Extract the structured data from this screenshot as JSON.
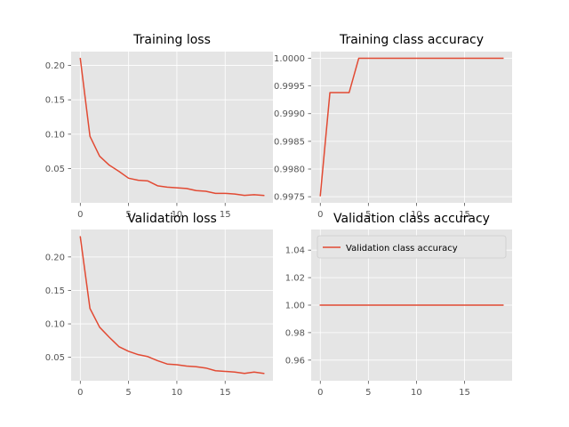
{
  "colors": {
    "background": "#ffffff",
    "plot_background": "#e5e5e5",
    "grid": "#ffffff",
    "line": "#e24a33",
    "tick": "#555555"
  },
  "chart_data": [
    {
      "type": "line",
      "title": "Training loss",
      "xlabel": "",
      "ylabel": "",
      "xlim": [
        -0.95,
        19.95
      ],
      "ylim": [
        0.0002,
        0.2201
      ],
      "xticks": [
        0,
        5,
        10,
        15
      ],
      "xtick_labels": [
        "0",
        "5",
        "10",
        "15"
      ],
      "yticks": [
        0.05,
        0.1,
        0.15,
        0.2
      ],
      "ytick_labels": [
        "0.05",
        "0.10",
        "0.15",
        "0.20"
      ],
      "grid": true,
      "legend": null,
      "series": [
        {
          "x": [
            0,
            1,
            2,
            3,
            4,
            5,
            6,
            7,
            8,
            9,
            10,
            11,
            12,
            13,
            14,
            15,
            16,
            17,
            18,
            19
          ],
          "y": [
            0.21,
            0.097,
            0.068,
            0.055,
            0.046,
            0.036,
            0.033,
            0.032,
            0.025,
            0.023,
            0.022,
            0.021,
            0.018,
            0.017,
            0.014,
            0.014,
            0.013,
            0.011,
            0.012,
            0.011
          ]
        }
      ]
    },
    {
      "type": "line",
      "title": "Training class accuracy",
      "xlabel": "",
      "ylabel": "",
      "xlim": [
        -0.95,
        19.95
      ],
      "ylim": [
        0.99739,
        1.00012
      ],
      "xticks": [
        0,
        5,
        10,
        15
      ],
      "xtick_labels": [
        "0",
        "5",
        "10",
        "15"
      ],
      "yticks": [
        0.9975,
        0.998,
        0.9985,
        0.999,
        0.9995,
        1.0
      ],
      "ytick_labels": [
        "0.9975",
        "0.9980",
        "0.9985",
        "0.9990",
        "0.9995",
        "1.0000"
      ],
      "grid": true,
      "legend": null,
      "series": [
        {
          "x": [
            0,
            1,
            2,
            3,
            4,
            5,
            6,
            7,
            8,
            9,
            10,
            11,
            12,
            13,
            14,
            15,
            16,
            17,
            18,
            19
          ],
          "y": [
            0.99752,
            0.99938,
            0.99938,
            0.99938,
            1.0,
            1.0,
            1.0,
            1.0,
            1.0,
            1.0,
            1.0,
            1.0,
            1.0,
            1.0,
            1.0,
            1.0,
            1.0,
            1.0,
            1.0,
            1.0
          ]
        }
      ]
    },
    {
      "type": "line",
      "title": "Validation loss",
      "xlabel": "",
      "ylabel": "",
      "xlim": [
        -0.95,
        19.95
      ],
      "ylim": [
        0.015,
        0.241
      ],
      "xticks": [
        0,
        5,
        10,
        15
      ],
      "xtick_labels": [
        "0",
        "5",
        "10",
        "15"
      ],
      "yticks": [
        0.05,
        0.1,
        0.15,
        0.2
      ],
      "ytick_labels": [
        "0.05",
        "0.10",
        "0.15",
        "0.20"
      ],
      "grid": true,
      "legend": null,
      "series": [
        {
          "x": [
            0,
            1,
            2,
            3,
            4,
            5,
            6,
            7,
            8,
            9,
            10,
            11,
            12,
            13,
            14,
            15,
            16,
            17,
            18,
            19
          ],
          "y": [
            0.23,
            0.123,
            0.095,
            0.08,
            0.066,
            0.059,
            0.054,
            0.051,
            0.045,
            0.04,
            0.039,
            0.037,
            0.036,
            0.034,
            0.03,
            0.029,
            0.028,
            0.026,
            0.028,
            0.026
          ]
        }
      ]
    },
    {
      "type": "line",
      "title": "Validation class accuracy",
      "xlabel": "",
      "ylabel": "",
      "xlim": [
        -0.95,
        19.95
      ],
      "ylim": [
        0.945,
        1.055
      ],
      "xticks": [
        0,
        5,
        10,
        15
      ],
      "xtick_labels": [
        "0",
        "5",
        "10",
        "15"
      ],
      "yticks": [
        0.96,
        0.98,
        1.0,
        1.02,
        1.04
      ],
      "ytick_labels": [
        "0.96",
        "0.98",
        "1.00",
        "1.02",
        "1.04"
      ],
      "grid": true,
      "legend": "upper left",
      "series": [
        {
          "name": "Validation class accuracy",
          "x": [
            0,
            1,
            2,
            3,
            4,
            5,
            6,
            7,
            8,
            9,
            10,
            11,
            12,
            13,
            14,
            15,
            16,
            17,
            18,
            19
          ],
          "y": [
            1,
            1,
            1,
            1,
            1,
            1,
            1,
            1,
            1,
            1,
            1,
            1,
            1,
            1,
            1,
            1,
            1,
            1,
            1,
            1
          ]
        }
      ]
    }
  ]
}
